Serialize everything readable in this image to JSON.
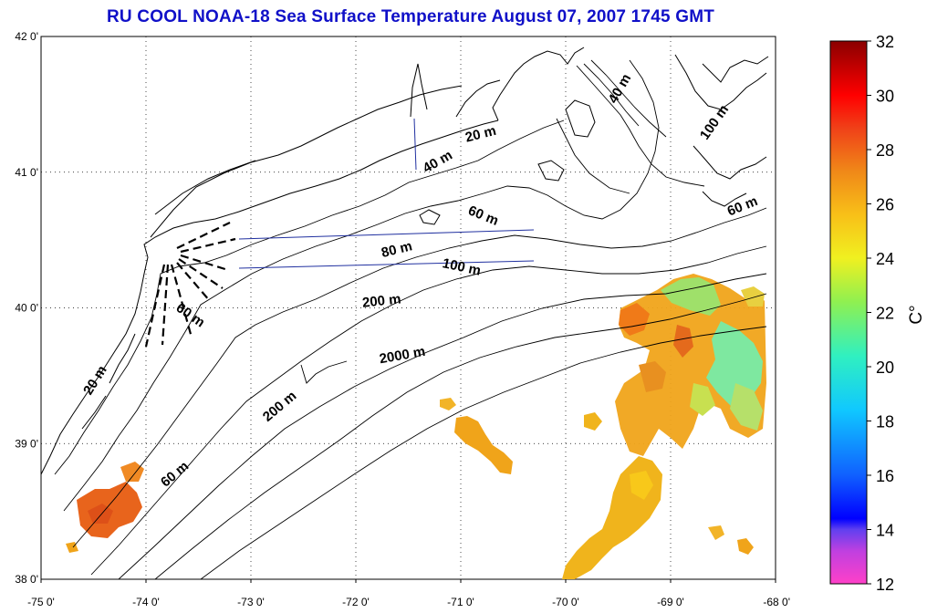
{
  "title": "RU COOL  NOAA-18 Sea Surface Temperature August 07, 2007 1745 GMT",
  "axes": {
    "lon_ticks": [
      "-75 0'",
      "-74 0'",
      "-73 0'",
      "-72 0'",
      "-71 0'",
      "-70 0'",
      "-69 0'",
      "-68 0'"
    ],
    "lat_ticks": [
      "42 0'",
      "41 0'",
      "40 0'",
      "39 0'",
      "38 0'"
    ],
    "lon_range": [
      -75,
      -68
    ],
    "lat_range": [
      38,
      42
    ],
    "grid": "dotted"
  },
  "contour_labels": [
    {
      "text": "20 m",
      "lon": -70.8,
      "lat": 41.25,
      "rot": -14
    },
    {
      "text": "40 m",
      "lon": -69.45,
      "lat": 41.6,
      "rot": -60
    },
    {
      "text": "100 m",
      "lon": -68.55,
      "lat": 41.35,
      "rot": -55
    },
    {
      "text": "40 m",
      "lon": -71.2,
      "lat": 41.05,
      "rot": -30
    },
    {
      "text": "60 m",
      "lon": -70.8,
      "lat": 40.65,
      "rot": 22
    },
    {
      "text": "60 m",
      "lon": -68.3,
      "lat": 40.72,
      "rot": -22
    },
    {
      "text": "80 m",
      "lon": -71.6,
      "lat": 40.4,
      "rot": -14
    },
    {
      "text": "100 m",
      "lon": -71.0,
      "lat": 40.27,
      "rot": 12
    },
    {
      "text": "200 m",
      "lon": -71.75,
      "lat": 40.02,
      "rot": -6
    },
    {
      "text": "60 m",
      "lon": -73.6,
      "lat": 39.92,
      "rot": 35
    },
    {
      "text": "2000 m",
      "lon": -71.55,
      "lat": 39.62,
      "rot": -10
    },
    {
      "text": "20 m",
      "lon": -74.45,
      "lat": 39.45,
      "rot": -58
    },
    {
      "text": "200 m",
      "lon": -72.7,
      "lat": 39.25,
      "rot": -40
    },
    {
      "text": "60 m",
      "lon": -73.7,
      "lat": 38.75,
      "rot": -40
    }
  ],
  "colorbar": {
    "unit": "C°",
    "ticks": [
      "32",
      "30",
      "28",
      "26",
      "24",
      "22",
      "20",
      "18",
      "16",
      "14",
      "12"
    ],
    "range": [
      12,
      32
    ]
  }
}
